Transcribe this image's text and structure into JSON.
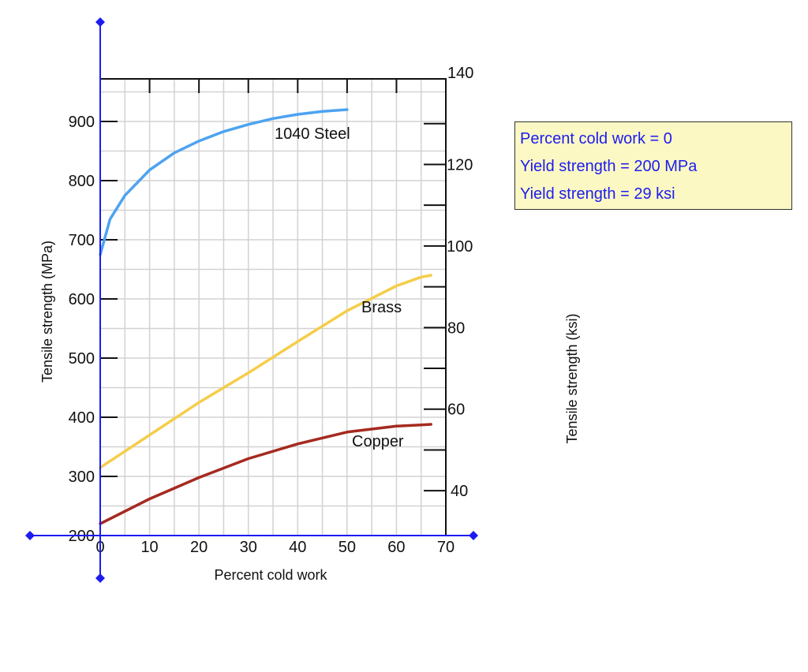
{
  "chart_data": {
    "type": "line",
    "xlabel": "Percent cold work",
    "ylabel": "Tensile strength (MPa)",
    "ylabel_right": "Tensile strength (ksi)",
    "xlim": [
      0,
      70
    ],
    "ylim": [
      200,
      970
    ],
    "ylim_right_ksi": [
      29,
      140
    ],
    "grid": true,
    "x_ticks": [
      "0",
      "10",
      "20",
      "30",
      "40",
      "50",
      "60",
      "70"
    ],
    "y_ticks": [
      "200",
      "300",
      "400",
      "500",
      "600",
      "700",
      "800",
      "900"
    ],
    "y_ticks_right": [
      "40",
      "60",
      "80",
      "100",
      "120",
      "140"
    ],
    "series": [
      {
        "name": "1040 Steel",
        "color": "#4da3f0",
        "x": [
          0,
          2,
          5,
          10,
          15,
          20,
          25,
          30,
          35,
          40,
          45,
          50
        ],
        "y": [
          675,
          735,
          775,
          818,
          847,
          867,
          883,
          895,
          905,
          912,
          917,
          920
        ]
      },
      {
        "name": "Brass",
        "color": "#f5cd4a",
        "x": [
          0,
          10,
          20,
          30,
          40,
          50,
          60,
          65,
          67
        ],
        "y": [
          315,
          370,
          425,
          475,
          528,
          580,
          622,
          637,
          640
        ]
      },
      {
        "name": "Copper",
        "color": "#a52a1f",
        "x": [
          0,
          10,
          20,
          30,
          40,
          50,
          60,
          65,
          67
        ],
        "y": [
          220,
          262,
          298,
          330,
          355,
          375,
          385,
          387,
          388
        ]
      }
    ]
  },
  "info_box": {
    "lines": [
      "Percent cold work = 0",
      "Yield strength = 200 MPa",
      "Yield strength = 29 ksi"
    ]
  },
  "colors": {
    "axis_handle": "#1c1cf0",
    "info_text": "#1c1cf0",
    "info_background": "#fbf8c4"
  }
}
